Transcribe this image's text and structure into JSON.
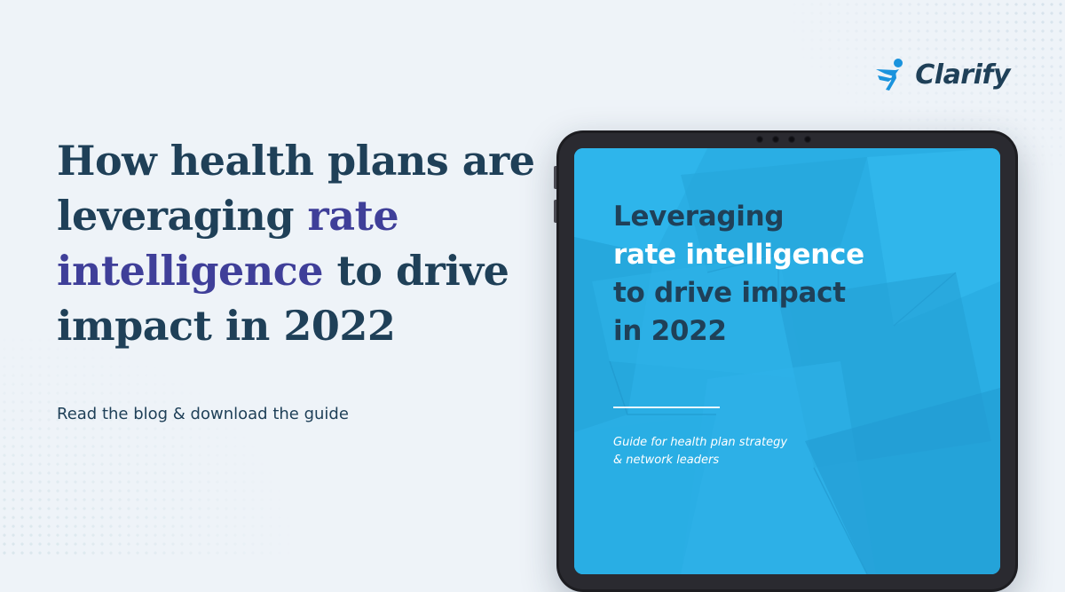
{
  "brand": {
    "name": "Clarify",
    "icon": "running-figure-icon",
    "icon_color": "#1a93dd"
  },
  "headline": {
    "line1": "How health plans are",
    "line2_pre": "leveraging ",
    "line2_accent": "rate",
    "line3_accent": "intelligence",
    "line3_post": " to drive",
    "line4": "impact in 2022"
  },
  "subline": "Read the blog & download the guide",
  "tablet": {
    "title_line1": "Leveraging",
    "title_line2": "rate intelligence",
    "title_line3": "to drive impact",
    "title_line4": "in 2022",
    "subtitle_line1": "Guide for health plan strategy",
    "subtitle_line2": "& network leaders"
  },
  "colors": {
    "background": "#eef3f8",
    "headline": "#1f4058",
    "accent": "#3f3f99",
    "screen": "#2aaee4",
    "device": "#1d1d21"
  }
}
